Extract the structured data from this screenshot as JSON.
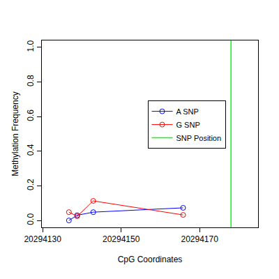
{
  "chart_data": {
    "type": "line",
    "x_label": "CpG Coordinates",
    "y_label": "Methylation Frequency",
    "x": [
      20294136.7,
      20294138.8,
      20294142.9,
      20294165.8
    ],
    "series": [
      {
        "name": "A SNP",
        "color": "#0000ff",
        "marker": "open_circle",
        "values": [
          0.0,
          0.03,
          0.048,
          0.073
        ]
      },
      {
        "name": "G SNP",
        "color": "#ff0000",
        "marker": "open_circle",
        "values": [
          0.048,
          0.024,
          0.113,
          0.032
        ]
      },
      {
        "name": "SNP Position",
        "color": "#00ff00",
        "type": "vline",
        "x": [
          20294178
        ]
      }
    ],
    "xlim": [
      20294129.8,
      20294184.9
    ],
    "xticks": [
      20294130,
      20294150,
      20294170
    ],
    "ylim": [
      -0.04,
      1.04
    ],
    "yticks": [
      {
        "value": 0,
        "label": "0.0"
      },
      0.2,
      0.4,
      0.6,
      0.8,
      {
        "value": 1,
        "label": "1.0"
      }
    ],
    "grid": false,
    "legend": "right"
  }
}
